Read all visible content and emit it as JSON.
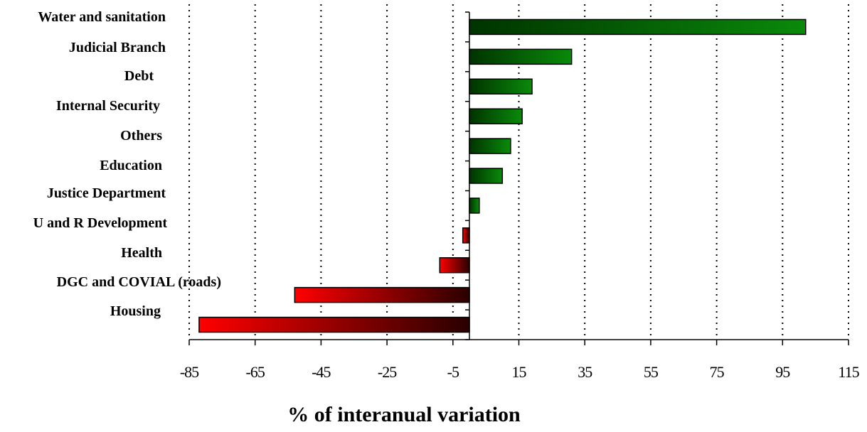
{
  "chart_data": {
    "type": "bar",
    "orientation": "horizontal",
    "title": "",
    "xlabel": "% of interanual variation",
    "ylabel": "",
    "categories": [
      "Water and sanitation",
      "Judicial Branch",
      "Debt",
      "Internal Security",
      "Others",
      "Education",
      "Justice Department",
      "U and R Development",
      "Health",
      "DGC and COVIAL (roads)",
      "Housing"
    ],
    "values": [
      102,
      31,
      19,
      16,
      12.5,
      10,
      3,
      -2,
      -9,
      -53,
      -82
    ],
    "xlim": [
      -85,
      115
    ],
    "xticks": [
      "-85",
      "-65",
      "-45",
      "-25",
      "-5",
      "15",
      "35",
      "55",
      "75",
      "95",
      "115"
    ],
    "grid": "vertical dotted",
    "colors": {
      "positive_dark": "#003300",
      "positive_light": "#0a8a0a",
      "negative_dark": "#2a0000",
      "negative_light": "#ff0000"
    }
  }
}
